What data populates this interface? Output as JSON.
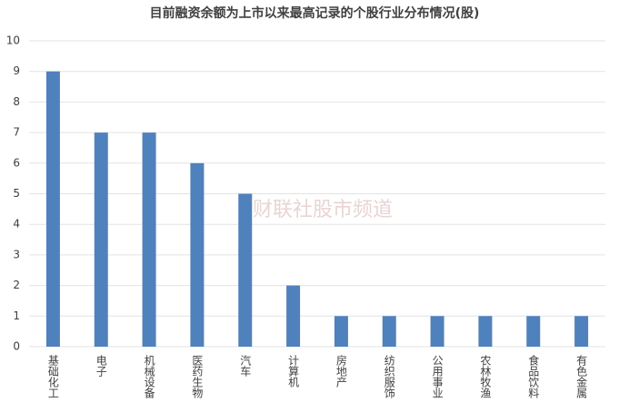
{
  "chart_data": {
    "type": "bar",
    "title": "目前融资余额为上市以来最高记录的个股行业分布情况(股)",
    "categories": [
      "基础化工",
      "电子",
      "机械设备",
      "医药生物",
      "汽车",
      "计算机",
      "房地产",
      "纺织服饰",
      "公用事业",
      "农林牧渔",
      "食品饮料",
      "有色金属"
    ],
    "values": [
      9,
      7,
      7,
      6,
      5,
      2,
      1,
      1,
      1,
      1,
      1,
      1
    ],
    "color": "#4f81bd",
    "ylim": [
      0,
      10
    ],
    "yticks": [
      0,
      1,
      2,
      3,
      4,
      5,
      6,
      7,
      8,
      9,
      10
    ],
    "grid": true,
    "watermark": "财联社股市频道"
  }
}
